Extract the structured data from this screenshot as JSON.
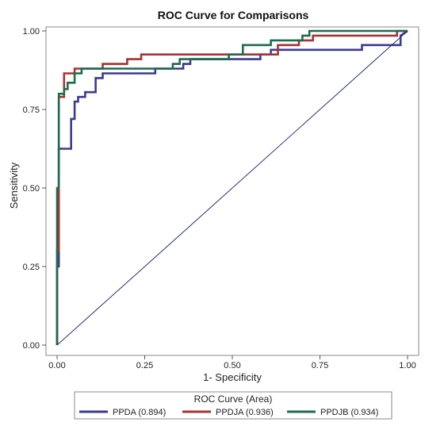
{
  "chart_data": {
    "type": "line",
    "title": "ROC Curve for Comparisons",
    "xlabel": "1- Specificity",
    "ylabel": "Sensitivity",
    "xlim": [
      0,
      1
    ],
    "ylim": [
      0,
      1
    ],
    "xticks": [
      "0.00",
      "0.25",
      "0.50",
      "0.75",
      "1.00"
    ],
    "yticks": [
      "0.00",
      "0.25",
      "0.50",
      "0.75",
      "1.00"
    ],
    "grid": false,
    "legend": {
      "title": "ROC Curve (Area)",
      "placement": "bottom"
    },
    "series": [
      {
        "name": "PPDA (0.894)",
        "color": "#3b3b8f",
        "x": [
          0,
          0,
          0.005,
          0.005,
          0.04,
          0.04,
          0.05,
          0.05,
          0.06,
          0.06,
          0.08,
          0.08,
          0.11,
          0.11,
          0.13,
          0.13,
          0.17,
          0.17,
          0.28,
          0.28,
          0.36,
          0.36,
          0.38,
          0.38,
          0.41,
          0.41,
          0.58,
          0.58,
          0.61,
          0.61,
          0.87,
          0.87,
          0.98,
          0.98,
          1.0
        ],
        "y": [
          0,
          0.25,
          0.25,
          0.625,
          0.625,
          0.72,
          0.72,
          0.775,
          0.775,
          0.79,
          0.79,
          0.805,
          0.805,
          0.85,
          0.85,
          0.865,
          0.865,
          0.865,
          0.865,
          0.88,
          0.88,
          0.895,
          0.895,
          0.91,
          0.91,
          0.91,
          0.91,
          0.925,
          0.925,
          0.94,
          0.94,
          0.955,
          0.955,
          0.985,
          1.0
        ]
      },
      {
        "name": "PPDJA (0.936)",
        "color": "#a83232",
        "x": [
          0,
          0,
          0.005,
          0.005,
          0.02,
          0.02,
          0.03,
          0.03,
          0.05,
          0.05,
          0.13,
          0.13,
          0.2,
          0.2,
          0.24,
          0.24,
          0.52,
          0.52,
          0.63,
          0.63,
          0.69,
          0.69,
          0.73,
          0.73,
          0.97,
          0.97,
          1.0
        ],
        "y": [
          0,
          0.3,
          0.3,
          0.79,
          0.79,
          0.865,
          0.865,
          0.865,
          0.865,
          0.88,
          0.88,
          0.895,
          0.895,
          0.91,
          0.91,
          0.925,
          0.925,
          0.925,
          0.925,
          0.955,
          0.955,
          0.97,
          0.97,
          0.985,
          0.985,
          1.0,
          1.0
        ]
      },
      {
        "name": "PPDJB (0.934)",
        "color": "#1e6b4e",
        "x": [
          0,
          0,
          0.005,
          0.005,
          0.02,
          0.02,
          0.03,
          0.03,
          0.05,
          0.05,
          0.07,
          0.07,
          0.33,
          0.33,
          0.35,
          0.35,
          0.49,
          0.49,
          0.53,
          0.53,
          0.61,
          0.61,
          0.7,
          0.7,
          0.72,
          0.72,
          1.0
        ],
        "y": [
          0,
          0.5,
          0.5,
          0.8,
          0.8,
          0.815,
          0.815,
          0.835,
          0.835,
          0.865,
          0.865,
          0.88,
          0.88,
          0.895,
          0.895,
          0.91,
          0.91,
          0.925,
          0.925,
          0.955,
          0.955,
          0.97,
          0.97,
          0.985,
          0.985,
          1.0,
          1.0
        ]
      },
      {
        "name": "",
        "color": "#2a2f7a",
        "x": [
          0,
          1
        ],
        "y": [
          0,
          1
        ]
      }
    ]
  }
}
